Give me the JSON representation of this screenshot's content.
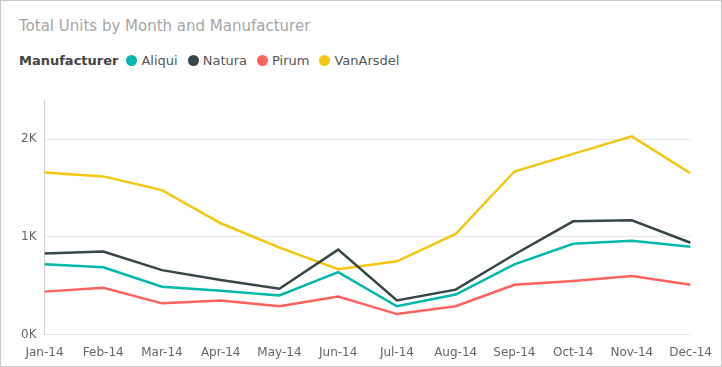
{
  "chart_data": {
    "type": "line",
    "title": "Total Units by Month and Manufacturer",
    "legend_title": "Manufacturer",
    "legend": "top-left",
    "grid": true,
    "categories": [
      "Jan-14",
      "Feb-14",
      "Mar-14",
      "Apr-14",
      "May-14",
      "Jun-14",
      "Jul-14",
      "Aug-14",
      "Sep-14",
      "Oct-14",
      "Nov-14",
      "Dec-14"
    ],
    "series": [
      {
        "name": "Aliqui",
        "color": "#01B8AA",
        "values": [
          720,
          690,
          490,
          450,
          400,
          640,
          290,
          410,
          720,
          930,
          960,
          900
        ]
      },
      {
        "name": "Natura",
        "color": "#374649",
        "values": [
          830,
          850,
          660,
          560,
          470,
          870,
          350,
          460,
          820,
          1160,
          1170,
          940
        ]
      },
      {
        "name": "Pirum",
        "color": "#FD625E",
        "values": [
          440,
          480,
          320,
          350,
          290,
          390,
          210,
          290,
          510,
          550,
          600,
          510
        ]
      },
      {
        "name": "VanArsdel",
        "color": "#F2C80F",
        "values": [
          1660,
          1620,
          1480,
          1140,
          890,
          670,
          750,
          1030,
          1670,
          1850,
          2030,
          1650
        ]
      }
    ],
    "ylim": [
      0,
      2400
    ],
    "yticks": [
      {
        "value": 0,
        "label": "0K"
      },
      {
        "value": 1000,
        "label": "1K"
      },
      {
        "value": 2000,
        "label": "2K"
      }
    ]
  }
}
